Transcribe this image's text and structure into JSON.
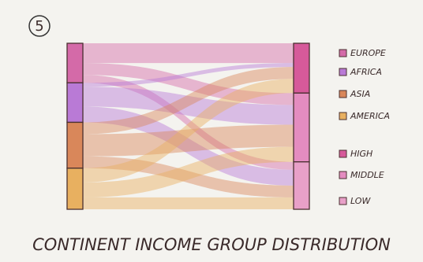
{
  "chart_data": {
    "type": "sankey",
    "badge": "5",
    "title": "CONTINENT INCOME GROUP DISTRIBUTION",
    "sources": [
      {
        "name": "EUROPE",
        "color": "#d46aa8"
      },
      {
        "name": "AFRICA",
        "color": "#b97ad6"
      },
      {
        "name": "ASIA",
        "color": "#d9875a"
      },
      {
        "name": "AMERICA",
        "color": "#e8b060"
      }
    ],
    "targets": [
      {
        "name": "HIGH",
        "color": "#d65a9a"
      },
      {
        "name": "MIDDLE",
        "color": "#e48cc0"
      },
      {
        "name": "LOW",
        "color": "#e8a0c8"
      }
    ],
    "links": [
      {
        "source": "EUROPE",
        "target": "HIGH",
        "value": 25
      },
      {
        "source": "EUROPE",
        "target": "MIDDLE",
        "value": 15
      },
      {
        "source": "EUROPE",
        "target": "LOW",
        "value": 10
      },
      {
        "source": "AFRICA",
        "target": "HIGH",
        "value": 5
      },
      {
        "source": "AFRICA",
        "target": "MIDDLE",
        "value": 25
      },
      {
        "source": "AFRICA",
        "target": "LOW",
        "value": 20
      },
      {
        "source": "ASIA",
        "target": "HIGH",
        "value": 15
      },
      {
        "source": "ASIA",
        "target": "MIDDLE",
        "value": 28
      },
      {
        "source": "ASIA",
        "target": "LOW",
        "value": 15
      },
      {
        "source": "AMERICA",
        "target": "HIGH",
        "value": 18
      },
      {
        "source": "AMERICA",
        "target": "MIDDLE",
        "value": 19
      },
      {
        "source": "AMERICA",
        "target": "LOW",
        "value": 15
      }
    ]
  }
}
